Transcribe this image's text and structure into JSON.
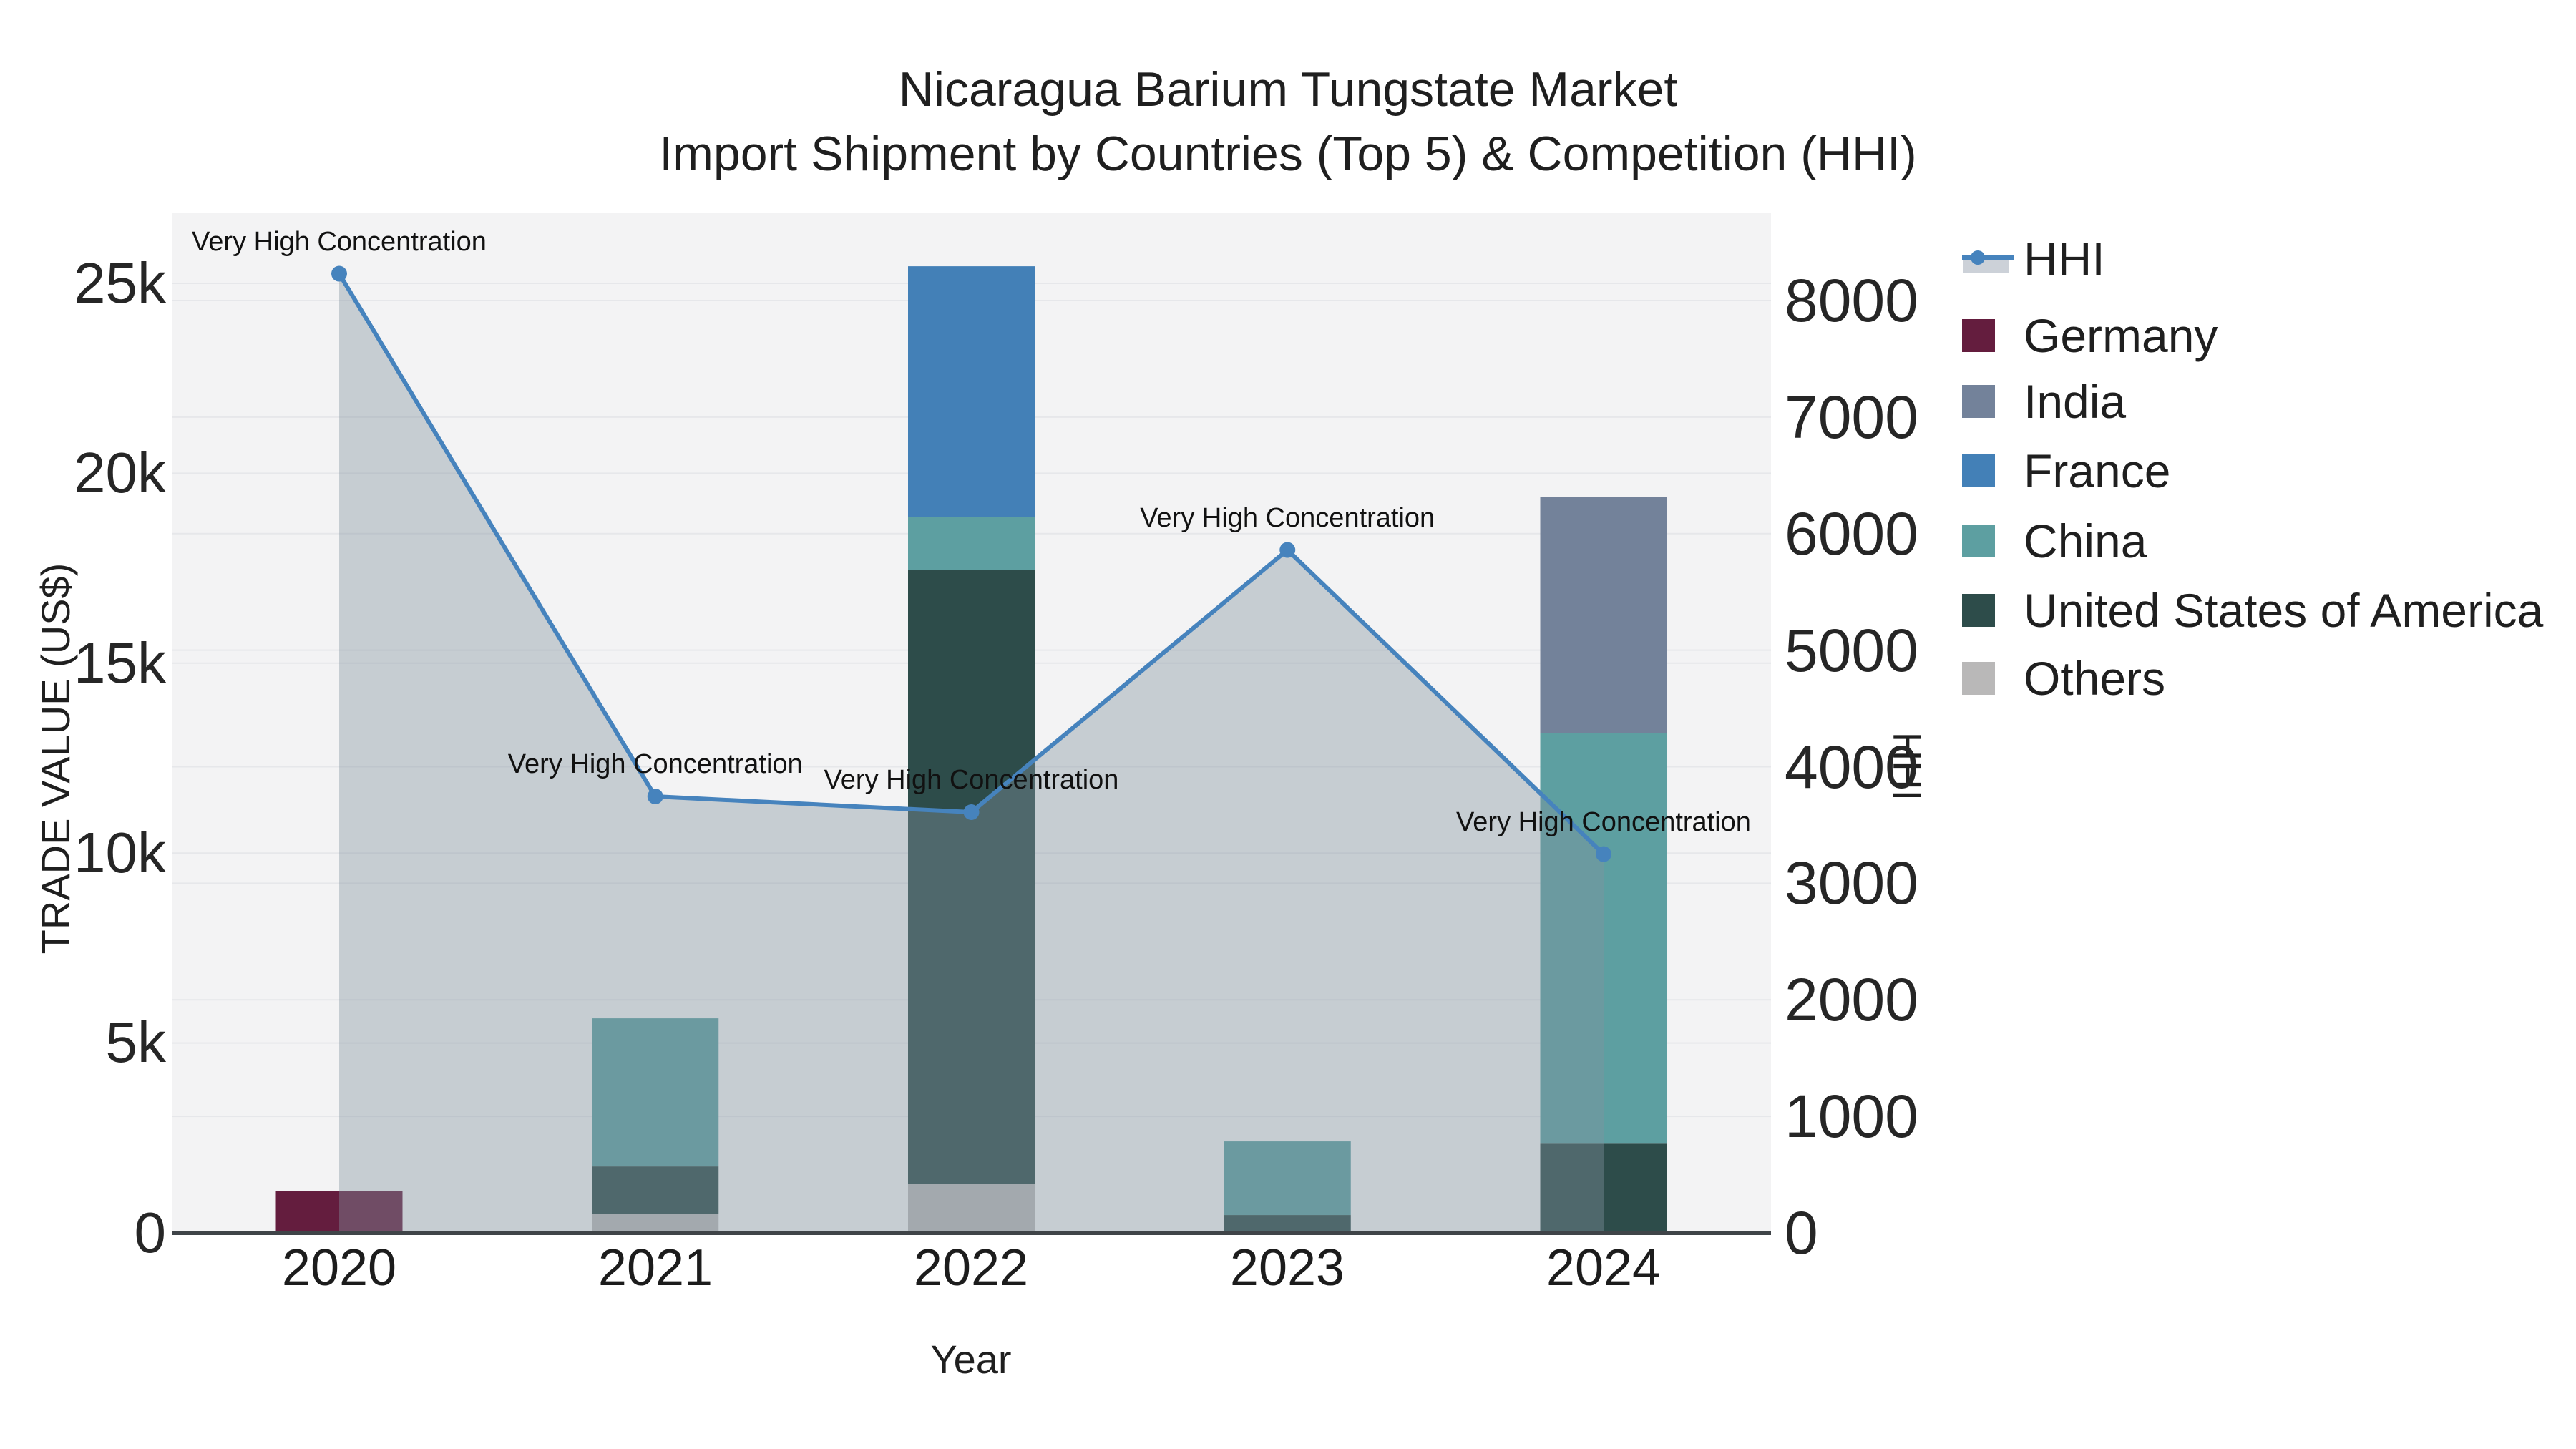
{
  "title": {
    "line1": "Nicaragua Barium Tungstate Market",
    "line2": "Import Shipment by Countries (Top 5) & Competition (HHI)"
  },
  "axes": {
    "x_title": "Year",
    "y_left_title": "TRADE VALUE (US$)",
    "y_right_title": "HHI",
    "left_tick_labels": [
      "0",
      "5k",
      "10k",
      "15k",
      "20k",
      "25k"
    ],
    "right_tick_labels": [
      "0",
      "1000",
      "2000",
      "3000",
      "4000",
      "5000",
      "6000",
      "7000",
      "8000"
    ],
    "year_tick_labels": [
      "2020",
      "2021",
      "2022",
      "2023",
      "2024"
    ]
  },
  "legend": {
    "items": [
      {
        "label": "HHI",
        "color": "#4683bd"
      },
      {
        "label": "Germany",
        "color": "#641d3e"
      },
      {
        "label": "India",
        "color": "#73829a"
      },
      {
        "label": "France",
        "color": "#4380b7"
      },
      {
        "label": "China",
        "color": "#5d9fa1"
      },
      {
        "label": "United States of America",
        "color": "#2d4c4a"
      },
      {
        "label": "Others",
        "color": "#b9b8b8"
      }
    ]
  },
  "annotations": [
    {
      "text": "Very High Concentration"
    },
    {
      "text": "Very High Concentration"
    },
    {
      "text": "Very High Concentration"
    },
    {
      "text": "Very High Concentration"
    },
    {
      "text": "Very High Concentration"
    }
  ],
  "chart_data": {
    "type": "composite-stacked-bar-and-line",
    "categories": [
      "2020",
      "2021",
      "2022",
      "2023",
      "2024"
    ],
    "bar_series": [
      {
        "name": "Others",
        "color": "#b9b8b8",
        "values": [
          0,
          500,
          1300,
          0,
          0
        ]
      },
      {
        "name": "United States of America",
        "color": "#2d4c4a",
        "values": [
          0,
          1250,
          16150,
          470,
          2350
        ]
      },
      {
        "name": "China",
        "color": "#5d9fa1",
        "values": [
          0,
          3900,
          1400,
          1940,
          10800
        ]
      },
      {
        "name": "France",
        "color": "#4380b7",
        "values": [
          0,
          0,
          6600,
          0,
          0
        ]
      },
      {
        "name": "India",
        "color": "#73829a",
        "values": [
          0,
          0,
          0,
          0,
          6220
        ]
      },
      {
        "name": "Germany",
        "color": "#641d3e",
        "values": [
          1100,
          0,
          0,
          0,
          0
        ]
      }
    ],
    "line_series": {
      "name": "HHI",
      "color": "#4683bd",
      "area_fill": "rgba(130,148,160,0.40)",
      "values": [
        8230,
        3745,
        3610,
        5860,
        3250
      ]
    },
    "y_left": {
      "label": "TRADE VALUE (US$)",
      "range": [
        0,
        25000
      ],
      "tick_values": [
        0,
        5000,
        10000,
        15000,
        20000,
        25000
      ]
    },
    "y_right": {
      "label": "HHI",
      "range": [
        0,
        8000
      ],
      "tick_values": [
        0,
        1000,
        2000,
        3000,
        4000,
        5000,
        6000,
        7000,
        8000
      ]
    },
    "x_label": "Year",
    "grid": true,
    "legend_position": "right",
    "plot_bg": "#f3f3f4",
    "grid_color": "#e6e7ea",
    "axis_line_color": "#3f4448"
  }
}
